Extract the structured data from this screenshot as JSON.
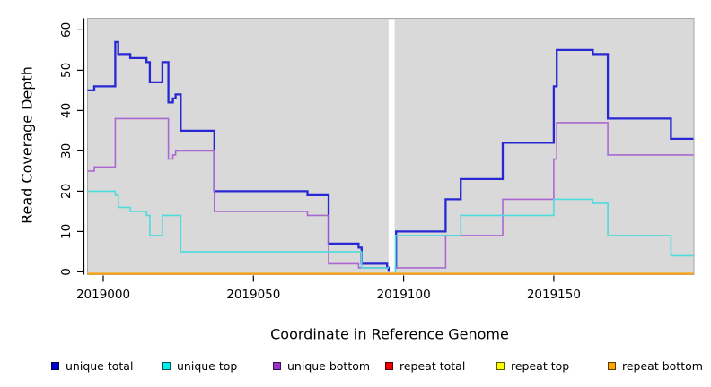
{
  "figure": {
    "background": "#ffffff",
    "plot_background": "#d9d9d9",
    "plot_border_color": "#a8a8a8",
    "axis_color": "#000000",
    "gap_color": "#ffffff"
  },
  "axes": {
    "x": {
      "label": "Coordinate in Reference Genome",
      "ticks": [
        2019000,
        2019050,
        2019100,
        2019150
      ]
    },
    "y": {
      "label": "Read Coverage Depth",
      "ticks": [
        0,
        10,
        20,
        30,
        40,
        50,
        60
      ]
    }
  },
  "legend": {
    "items": [
      {
        "label": "unique total",
        "swatch": "#0000cc"
      },
      {
        "label": "unique top",
        "swatch": "#00eeee"
      },
      {
        "label": "unique bottom",
        "swatch": "#9932cc"
      },
      {
        "label": "repeat total",
        "swatch": "#ee0000"
      },
      {
        "label": "repeat top",
        "swatch": "#ffff00"
      },
      {
        "label": "repeat bottom",
        "swatch": "#ffa500"
      }
    ]
  },
  "chart_data": {
    "type": "line",
    "step": "after",
    "title": "",
    "xlabel": "Coordinate in Reference Genome",
    "ylabel": "Read Coverage Depth",
    "xlim": [
      2018995,
      2019197
    ],
    "ylim": [
      0,
      60
    ],
    "grid": false,
    "legend_position": "bottom",
    "gap": {
      "x_start": 2019095,
      "x_end": 2019097,
      "note": "white no-data band"
    },
    "series": [
      {
        "name": "unique total",
        "color": "#2727d3",
        "width": 2.3,
        "segments": [
          [
            [
              2018994.8,
              45
            ],
            [
              2018997,
              46
            ],
            [
              2019004,
              57
            ],
            [
              2019005,
              54
            ],
            [
              2019009,
              53
            ],
            [
              2019014.4,
              52
            ],
            [
              2019015.5,
              47
            ],
            [
              2019019.7,
              52
            ],
            [
              2019021.7,
              42
            ],
            [
              2019023.2,
              43
            ],
            [
              2019024.1,
              44
            ],
            [
              2019025.8,
              35
            ],
            [
              2019037,
              20
            ],
            [
              2019068,
              19
            ],
            [
              2019075,
              7
            ],
            [
              2019085,
              6
            ],
            [
              2019086,
              2
            ],
            [
              2019094.5,
              1
            ],
            [
              2019095,
              0
            ]
          ],
          [
            [
              2019097,
              1
            ],
            [
              2019097.5,
              10
            ],
            [
              2019114,
              18
            ],
            [
              2019119,
              23
            ],
            [
              2019133,
              32
            ],
            [
              2019150,
              46
            ],
            [
              2019151,
              55
            ],
            [
              2019163,
              54
            ],
            [
              2019168,
              38
            ],
            [
              2019189,
              33
            ],
            [
              2019196.5,
              33
            ]
          ]
        ]
      },
      {
        "name": "unique bottom",
        "color": "#ac68d2",
        "width": 1.6,
        "segments": [
          [
            [
              2018994.8,
              25
            ],
            [
              2018997,
              26
            ],
            [
              2019004,
              38
            ],
            [
              2019021.7,
              28
            ],
            [
              2019023.2,
              29
            ],
            [
              2019024.1,
              30
            ],
            [
              2019037,
              15
            ],
            [
              2019068,
              14
            ],
            [
              2019075,
              2
            ],
            [
              2019085,
              1
            ],
            [
              2019095,
              1
            ]
          ],
          [
            [
              2019097,
              1
            ],
            [
              2019114,
              9
            ],
            [
              2019133,
              18
            ],
            [
              2019150,
              28
            ],
            [
              2019151,
              37
            ],
            [
              2019168,
              29
            ],
            [
              2019196.5,
              29
            ]
          ]
        ]
      },
      {
        "name": "unique top",
        "color": "#4edbdb",
        "width": 1.6,
        "segments": [
          [
            [
              2018994.8,
              20
            ],
            [
              2019004,
              19
            ],
            [
              2019005,
              16
            ],
            [
              2019009,
              15
            ],
            [
              2019014.4,
              14
            ],
            [
              2019015.5,
              9
            ],
            [
              2019019.7,
              14
            ],
            [
              2019025.8,
              5
            ],
            [
              2019086,
              1
            ],
            [
              2019095,
              1
            ]
          ],
          [
            [
              2019097,
              0
            ],
            [
              2019097.3,
              9
            ],
            [
              2019119,
              14
            ],
            [
              2019150,
              18
            ],
            [
              2019163,
              17
            ],
            [
              2019168,
              9
            ],
            [
              2019189,
              4
            ],
            [
              2019196.5,
              4
            ]
          ]
        ]
      },
      {
        "name": "repeat total",
        "color": "#cc0000",
        "width": 1.4,
        "baseline": true,
        "segments": [
          [
            [
              2018994.8,
              0
            ],
            [
              2019196.5,
              0
            ]
          ]
        ]
      },
      {
        "name": "repeat top",
        "color": "#ffff00",
        "width": 1.4,
        "baseline": true,
        "segments": [
          [
            [
              2018994.8,
              0
            ],
            [
              2019196.5,
              0
            ]
          ]
        ]
      },
      {
        "name": "repeat bottom",
        "color": "#ffa216",
        "width": 2.2,
        "baseline": true,
        "segments": [
          [
            [
              2018994.8,
              0
            ],
            [
              2019196.5,
              0
            ]
          ]
        ]
      }
    ]
  }
}
